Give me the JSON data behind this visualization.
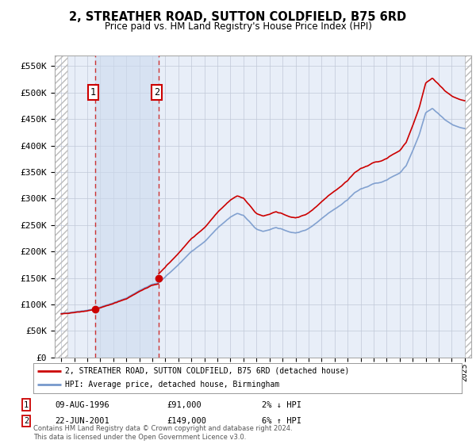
{
  "title": "2, STREATHER ROAD, SUTTON COLDFIELD, B75 6RD",
  "subtitle": "Price paid vs. HM Land Registry's House Price Index (HPI)",
  "legend_label_red": "2, STREATHER ROAD, SUTTON COLDFIELD, B75 6RD (detached house)",
  "legend_label_blue": "HPI: Average price, detached house, Birmingham",
  "table_rows": [
    {
      "num": 1,
      "date": "09-AUG-1996",
      "price": "£91,000",
      "hpi": "2% ↓ HPI"
    },
    {
      "num": 2,
      "date": "22-JUN-2001",
      "price": "£149,000",
      "hpi": "6% ↑ HPI"
    }
  ],
  "footer": "Contains HM Land Registry data © Crown copyright and database right 2024.\nThis data is licensed under the Open Government Licence v3.0.",
  "purchase1_year": 1996.6,
  "purchase1_price": 91000,
  "purchase2_year": 2001.47,
  "purchase2_price": 149000,
  "ylim": [
    0,
    570000
  ],
  "xlim_start": 1993.5,
  "xlim_end": 2025.5,
  "background_color": "#ffffff",
  "plot_bg_color": "#e8eef8",
  "hatch_color": "#bbbbbb",
  "grid_color": "#c0c8d8",
  "red_color": "#cc0000",
  "blue_color": "#7799cc",
  "dashed_color": "#cc3333",
  "hpi_factor": 1.06
}
